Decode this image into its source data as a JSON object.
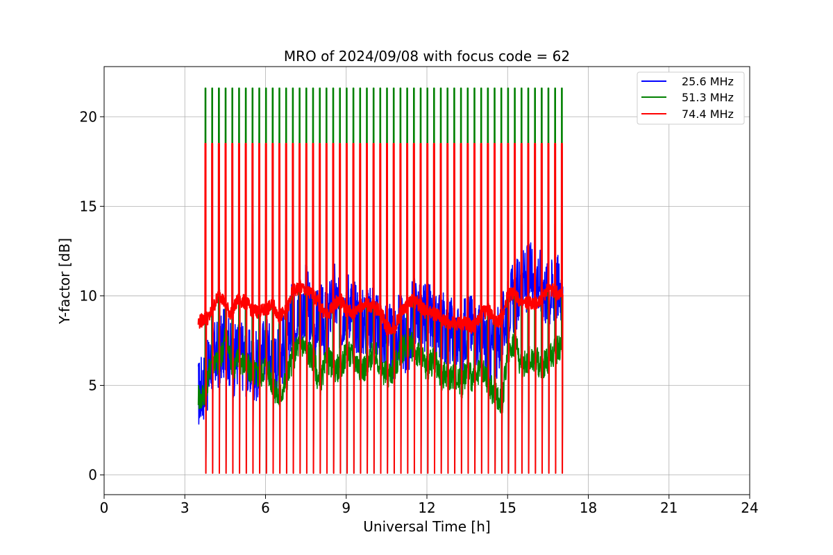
{
  "chart_data": {
    "type": "line",
    "title": "MRO of 2024/09/08 with focus code = 62",
    "xlabel": "Universal Time [h]",
    "ylabel": "Y-factor [dB]",
    "xlim": [
      0,
      24
    ],
    "ylim": [
      -1.1,
      22.8
    ],
    "xticks": [
      0,
      3,
      6,
      9,
      12,
      15,
      18,
      21,
      24
    ],
    "yticks": [
      0,
      5,
      10,
      15,
      20
    ],
    "grid": true,
    "legend_position": "top-right",
    "series": [
      {
        "name": "25.6 MHz",
        "color": "#0000ff",
        "description": "Baseline Y-factor with periodic calibration pulses",
        "x": [
          3.5,
          3.6,
          3.8,
          4.0,
          4.3,
          4.5,
          4.8,
          5.0,
          5.2,
          5.5,
          5.8,
          6.0,
          6.3,
          6.5,
          6.8,
          7.0,
          7.3,
          7.5,
          7.8,
          8.0,
          8.3,
          8.5,
          8.8,
          9.0,
          9.3,
          9.5,
          9.8,
          10.0,
          10.3,
          10.5,
          10.8,
          11.0,
          11.3,
          11.5,
          11.8,
          12.0,
          12.3,
          12.5,
          12.8,
          13.0,
          13.3,
          13.5,
          13.8,
          14.0,
          14.3,
          14.5,
          14.8,
          15.0,
          15.3,
          15.5,
          15.8,
          16.0,
          16.3,
          16.5,
          16.8,
          17.05
        ],
        "y": [
          4.5,
          4.8,
          5.2,
          6.5,
          6.8,
          7.5,
          6.2,
          7.0,
          6.5,
          6.0,
          6.2,
          7.5,
          6.0,
          6.5,
          7.5,
          9.0,
          8.5,
          10.0,
          8.0,
          9.0,
          8.0,
          10.5,
          8.5,
          10.0,
          9.0,
          8.5,
          8.5,
          9.0,
          7.5,
          8.0,
          7.0,
          8.5,
          7.0,
          9.5,
          8.5,
          9.0,
          8.0,
          8.5,
          8.0,
          8.0,
          7.5,
          8.5,
          8.0,
          7.5,
          7.0,
          7.0,
          8.0,
          9.5,
          10.0,
          10.5,
          11.0,
          11.5,
          10.5,
          10.0,
          10.5,
          10.5
        ]
      },
      {
        "name": "51.3 MHz",
        "color": "#008000",
        "description": "Baseline Y-factor with periodic calibration pulses",
        "x": [
          3.5,
          3.6,
          3.8,
          4.0,
          4.3,
          4.5,
          4.8,
          5.0,
          5.3,
          5.5,
          5.8,
          6.0,
          6.3,
          6.5,
          6.8,
          7.0,
          7.3,
          7.5,
          7.8,
          8.0,
          8.3,
          8.5,
          8.8,
          9.0,
          9.3,
          9.5,
          9.8,
          10.0,
          10.3,
          10.5,
          10.8,
          11.0,
          11.3,
          11.5,
          11.8,
          12.0,
          12.3,
          12.5,
          12.8,
          13.0,
          13.3,
          13.5,
          13.8,
          14.0,
          14.3,
          14.5,
          14.8,
          15.0,
          15.3,
          15.5,
          15.8,
          16.0,
          16.3,
          16.5,
          16.8,
          17.05
        ],
        "y": [
          4.5,
          4.2,
          5.0,
          6.5,
          6.2,
          7.8,
          6.0,
          6.5,
          6.0,
          5.8,
          5.5,
          6.2,
          5.0,
          4.2,
          5.5,
          6.5,
          7.5,
          7.0,
          6.5,
          5.0,
          6.5,
          6.0,
          6.0,
          6.8,
          6.5,
          6.0,
          6.0,
          7.0,
          6.0,
          5.5,
          6.0,
          6.8,
          7.5,
          7.0,
          6.5,
          6.0,
          6.5,
          5.5,
          5.5,
          5.5,
          5.0,
          6.0,
          5.0,
          6.0,
          5.0,
          4.5,
          4.0,
          7.0,
          7.5,
          6.0,
          6.5,
          6.5,
          6.0,
          6.5,
          7.0,
          7.0
        ]
      },
      {
        "name": "74.4 MHz",
        "color": "#ff0000",
        "description": "Baseline Y-factor with periodic calibration pulses",
        "x": [
          3.5,
          3.7,
          3.9,
          4.1,
          4.3,
          4.5,
          4.7,
          5.0,
          5.3,
          5.5,
          5.8,
          6.0,
          6.3,
          6.5,
          6.8,
          7.0,
          7.3,
          7.5,
          7.8,
          8.0,
          8.3,
          8.5,
          8.8,
          9.0,
          9.3,
          9.5,
          9.8,
          10.0,
          10.3,
          10.5,
          10.8,
          11.0,
          11.3,
          11.5,
          11.8,
          12.0,
          12.3,
          12.5,
          12.8,
          13.0,
          13.3,
          13.5,
          13.8,
          14.0,
          14.3,
          14.5,
          14.8,
          15.0,
          15.3,
          15.5,
          15.8,
          16.0,
          16.3,
          16.5,
          16.8,
          17.05
        ],
        "y": [
          8.5,
          8.7,
          8.8,
          9.5,
          10.2,
          9.5,
          9.0,
          9.8,
          9.6,
          9.2,
          9.1,
          9.2,
          9.5,
          8.8,
          9.2,
          10.2,
          10.5,
          10.3,
          10.0,
          9.5,
          8.8,
          9.5,
          9.8,
          9.2,
          9.0,
          9.5,
          9.5,
          9.4,
          9.1,
          8.2,
          8.2,
          9.0,
          9.5,
          9.8,
          9.4,
          9.0,
          9.0,
          8.8,
          8.5,
          8.4,
          8.5,
          8.4,
          8.2,
          9.0,
          9.2,
          8.7,
          8.6,
          10.0,
          10.2,
          9.5,
          9.6,
          9.5,
          9.8,
          10.5,
          10.2,
          10.0
        ]
      }
    ],
    "calibration_pulses": {
      "description": "Periodic near-vertical spikes from baseline to peak and down to ~0",
      "interval_h": 0.25,
      "start_h": 3.75,
      "end_h": 17.0,
      "peak_51_3": 21.6,
      "peak_74_4": 18.5,
      "low": 0.1
    }
  }
}
